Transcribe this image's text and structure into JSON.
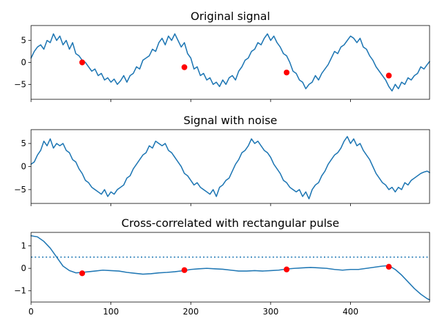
{
  "chart_data": [
    {
      "type": "line",
      "title": "Original signal",
      "xlim": [
        0,
        499
      ],
      "ylim": [
        -8.4,
        8.4
      ],
      "yticks": [
        -5,
        0,
        5
      ],
      "xticks": [
        0,
        100,
        200,
        300,
        400
      ],
      "show_xticklabels": false,
      "series": [
        {
          "color": "#1f77b4",
          "x": [
            0,
            4,
            8,
            12,
            16,
            20,
            24,
            28,
            32,
            36,
            40,
            44,
            48,
            52,
            56,
            60,
            64,
            68,
            72,
            76,
            80,
            84,
            88,
            92,
            96,
            100,
            104,
            108,
            112,
            116,
            120,
            124,
            128,
            132,
            136,
            140,
            144,
            148,
            152,
            156,
            160,
            164,
            168,
            172,
            176,
            180,
            184,
            188,
            192,
            196,
            200,
            204,
            208,
            212,
            216,
            220,
            224,
            228,
            232,
            236,
            240,
            244,
            248,
            252,
            256,
            260,
            264,
            268,
            272,
            276,
            280,
            284,
            288,
            292,
            296,
            300,
            304,
            308,
            312,
            316,
            320,
            324,
            328,
            332,
            336,
            340,
            344,
            348,
            352,
            356,
            360,
            364,
            368,
            372,
            376,
            380,
            384,
            388,
            392,
            396,
            400,
            404,
            408,
            412,
            416,
            420,
            424,
            428,
            432,
            436,
            440,
            444,
            448,
            452,
            456,
            460,
            464,
            468,
            472,
            476,
            480,
            484,
            488,
            492,
            496,
            499
          ],
          "y": [
            1.0,
            2.5,
            3.5,
            4.0,
            3.0,
            5.0,
            4.5,
            6.5,
            5.0,
            6.0,
            4.0,
            5.0,
            3.0,
            4.5,
            2.0,
            1.5,
            0.5,
            0.0,
            -1.0,
            -2.0,
            -1.5,
            -3.0,
            -2.5,
            -4.0,
            -3.5,
            -4.5,
            -3.8,
            -5.0,
            -4.2,
            -3.0,
            -4.5,
            -3.0,
            -2.5,
            -1.0,
            -1.5,
            0.5,
            1.0,
            1.5,
            3.0,
            2.5,
            4.5,
            5.5,
            4.0,
            6.0,
            5.0,
            6.5,
            5.0,
            3.5,
            4.5,
            2.0,
            1.0,
            -1.5,
            -1.0,
            -3.0,
            -2.5,
            -4.0,
            -3.5,
            -5.0,
            -4.5,
            -5.5,
            -4.0,
            -5.0,
            -3.5,
            -3.0,
            -4.0,
            -2.0,
            -1.0,
            0.5,
            1.0,
            2.5,
            3.0,
            4.5,
            4.0,
            5.5,
            6.5,
            5.0,
            6.0,
            4.5,
            3.5,
            2.0,
            1.5,
            0.0,
            -2.0,
            -2.5,
            -4.0,
            -4.5,
            -6.0,
            -5.0,
            -4.5,
            -3.0,
            -4.0,
            -2.5,
            -1.5,
            -0.5,
            1.0,
            2.5,
            2.0,
            3.5,
            4.0,
            5.0,
            6.0,
            5.5,
            4.5,
            5.5,
            3.5,
            3.0,
            1.5,
            0.5,
            -1.0,
            -2.0,
            -3.0,
            -4.0,
            -5.5,
            -6.5,
            -5.0,
            -6.0,
            -4.5,
            -5.0,
            -3.5,
            -4.0,
            -3.0,
            -2.5,
            -1.0,
            -1.5,
            -0.5,
            0.2
          ]
        },
        {
          "color": "#ff0000",
          "x": [
            64,
            192,
            320,
            448
          ],
          "y": [
            0.0,
            -1.1,
            -2.3,
            -3.0
          ]
        }
      ]
    },
    {
      "type": "line",
      "title": "Signal with noise",
      "xlim": [
        0,
        499
      ],
      "ylim": [
        -8.0,
        8.0
      ],
      "yticks": [
        -5,
        0,
        5
      ],
      "xticks": [
        0,
        100,
        200,
        300,
        400
      ],
      "show_xticklabels": false,
      "series": [
        {
          "color": "#1f77b4",
          "x": [
            0,
            4,
            8,
            12,
            16,
            20,
            24,
            28,
            32,
            36,
            40,
            44,
            48,
            52,
            56,
            60,
            64,
            68,
            72,
            76,
            80,
            84,
            88,
            92,
            96,
            100,
            104,
            108,
            112,
            116,
            120,
            124,
            128,
            132,
            136,
            140,
            144,
            148,
            152,
            156,
            160,
            164,
            168,
            172,
            176,
            180,
            184,
            188,
            192,
            196,
            200,
            204,
            208,
            212,
            216,
            220,
            224,
            228,
            232,
            236,
            240,
            244,
            248,
            252,
            256,
            260,
            264,
            268,
            272,
            276,
            280,
            284,
            288,
            292,
            296,
            300,
            304,
            308,
            312,
            316,
            320,
            324,
            328,
            332,
            336,
            340,
            344,
            348,
            352,
            356,
            360,
            364,
            368,
            372,
            376,
            380,
            384,
            388,
            392,
            396,
            400,
            404,
            408,
            412,
            416,
            420,
            424,
            428,
            432,
            436,
            440,
            444,
            448,
            452,
            456,
            460,
            464,
            468,
            472,
            476,
            480,
            484,
            488,
            492,
            496,
            499
          ],
          "y": [
            0.5,
            1.0,
            2.5,
            3.5,
            5.5,
            4.5,
            6.0,
            4.0,
            5.0,
            4.5,
            5.0,
            3.5,
            3.0,
            1.5,
            1.0,
            -0.5,
            -1.5,
            -3.0,
            -3.5,
            -4.5,
            -5.0,
            -5.5,
            -6.0,
            -5.0,
            -6.5,
            -5.5,
            -6.0,
            -5.0,
            -4.5,
            -4.0,
            -2.5,
            -2.0,
            -0.5,
            0.5,
            1.5,
            2.5,
            3.0,
            4.5,
            4.0,
            5.5,
            5.0,
            4.5,
            5.0,
            3.5,
            3.0,
            2.0,
            1.0,
            0.0,
            -1.5,
            -2.0,
            -3.0,
            -4.0,
            -3.5,
            -4.5,
            -5.0,
            -5.5,
            -6.0,
            -5.0,
            -6.5,
            -4.5,
            -4.0,
            -3.0,
            -2.5,
            -1.0,
            0.5,
            1.5,
            3.0,
            3.5,
            4.5,
            6.0,
            5.0,
            5.5,
            4.5,
            3.5,
            3.0,
            2.0,
            0.5,
            -0.5,
            -1.5,
            -3.0,
            -3.5,
            -4.5,
            -5.0,
            -5.5,
            -5.0,
            -6.5,
            -5.5,
            -7.0,
            -5.0,
            -4.0,
            -3.5,
            -2.0,
            -1.0,
            0.5,
            1.5,
            2.5,
            3.0,
            4.0,
            5.5,
            6.5,
            5.0,
            6.0,
            4.5,
            5.0,
            3.5,
            2.5,
            1.5,
            0.0,
            -1.5,
            -2.5,
            -3.5,
            -4.0,
            -5.0,
            -4.5,
            -5.5,
            -4.5,
            -5.0,
            -3.5,
            -4.0,
            -3.0,
            -2.5,
            -2.0,
            -1.5,
            -1.2,
            -1.0,
            -1.3
          ]
        }
      ]
    },
    {
      "type": "line",
      "title": "Cross-correlated with rectangular pulse",
      "xlim": [
        0,
        499
      ],
      "ylim": [
        -1.5,
        1.6
      ],
      "yticks": [
        -1,
        0,
        1
      ],
      "xticks": [
        0,
        100,
        200,
        300,
        400
      ],
      "show_xticklabels": true,
      "threshold": 0.5,
      "series": [
        {
          "color": "#1f77b4",
          "x": [
            0,
            8,
            16,
            24,
            32,
            40,
            48,
            56,
            64,
            72,
            80,
            90,
            100,
            110,
            120,
            130,
            140,
            150,
            160,
            170,
            180,
            192,
            200,
            210,
            220,
            230,
            240,
            250,
            260,
            270,
            280,
            290,
            300,
            310,
            320,
            330,
            340,
            350,
            360,
            370,
            380,
            390,
            400,
            410,
            420,
            430,
            440,
            448,
            456,
            464,
            472,
            480,
            488,
            496,
            499
          ],
          "y": [
            1.45,
            1.4,
            1.2,
            0.9,
            0.5,
            0.1,
            -0.1,
            -0.2,
            -0.18,
            -0.15,
            -0.12,
            -0.08,
            -0.1,
            -0.12,
            -0.18,
            -0.22,
            -0.26,
            -0.24,
            -0.2,
            -0.18,
            -0.15,
            -0.1,
            -0.05,
            -0.02,
            0.0,
            -0.02,
            -0.04,
            -0.08,
            -0.12,
            -0.12,
            -0.1,
            -0.12,
            -0.1,
            -0.08,
            -0.03,
            0.0,
            0.02,
            0.04,
            0.02,
            0.0,
            -0.05,
            -0.08,
            -0.05,
            -0.05,
            0.0,
            0.05,
            0.1,
            0.12,
            -0.05,
            -0.3,
            -0.6,
            -0.9,
            -1.15,
            -1.35,
            -1.4
          ]
        },
        {
          "color": "#ff0000",
          "x": [
            64,
            192,
            320,
            448
          ],
          "y": [
            -0.22,
            -0.08,
            -0.05,
            0.07
          ]
        }
      ]
    }
  ]
}
